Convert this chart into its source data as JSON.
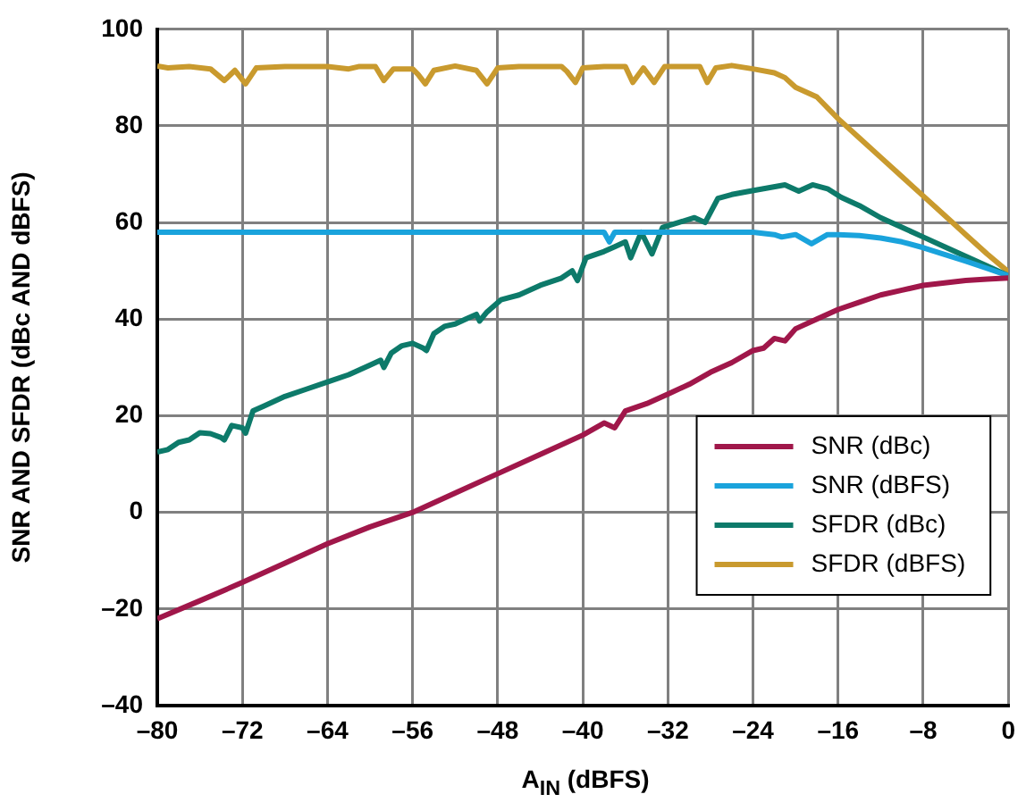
{
  "chart_data": {
    "type": "line",
    "xlabel": "A$_{IN}$ (dBFS)",
    "ylabel": "SNR AND SFDR (dBc AND dBFS)",
    "xlim": [
      -80,
      0
    ],
    "xticks": [
      {
        "value": -80,
        "label": "–80"
      },
      {
        "value": -72,
        "label": "–72"
      },
      {
        "value": -64,
        "label": "–64"
      },
      {
        "value": -56,
        "label": "–56"
      },
      {
        "value": -48,
        "label": "–48"
      },
      {
        "value": -40,
        "label": "–40"
      },
      {
        "value": -32,
        "label": "–32"
      },
      {
        "value": -24,
        "label": "–24"
      },
      {
        "value": -16,
        "label": "–16"
      },
      {
        "value": -8,
        "label": "–8"
      },
      0
    ],
    "ylim": [
      -40,
      100
    ],
    "yticks": [
      {
        "value": -40,
        "label": "–40"
      },
      {
        "value": -20,
        "label": "–20"
      },
      0,
      20,
      40,
      60,
      80,
      100
    ],
    "grid": true,
    "legend": "bottom right",
    "marker": "none",
    "line_style": "solid",
    "series": [
      {
        "name": "SNR (dBc)",
        "color": "#a0174a",
        "x": [
          -80,
          -76,
          -72,
          -68,
          -64,
          -60,
          -56,
          -52,
          -48,
          -44,
          -40,
          -38,
          -37,
          -36,
          -34,
          -32,
          -30,
          -28,
          -26,
          -24,
          -23,
          -22,
          -21,
          -20,
          -18,
          -16,
          -14,
          -12,
          -10,
          -8,
          -6,
          -4,
          -2,
          0
        ],
        "values": [
          -22,
          -18.3,
          -14.5,
          -10.5,
          -6.5,
          -3,
          0,
          4,
          8,
          12,
          16,
          18.5,
          17.5,
          21,
          22.5,
          24.5,
          26.5,
          29,
          31,
          33.5,
          34,
          36,
          35.5,
          38,
          40,
          42,
          43.5,
          45,
          46,
          47,
          47.5,
          48,
          48.3,
          48.5
        ]
      },
      {
        "name": "SNR (dBFS)",
        "color": "#1aa3dc",
        "x": [
          -80,
          -40,
          -38,
          -37.5,
          -37,
          -36,
          -24,
          -22,
          -21.3,
          -20,
          -18.5,
          -17,
          -16,
          -14,
          -12,
          -10,
          -8,
          -6,
          -4,
          -2,
          0
        ],
        "values": [
          58,
          58,
          58,
          56,
          58,
          58,
          58,
          57.5,
          57,
          57.5,
          55.6,
          57.5,
          57.5,
          57.3,
          56.8,
          56,
          54.8,
          53.4,
          52,
          50.5,
          49
        ]
      },
      {
        "name": "SFDR (dBc)",
        "color": "#0d7a6a",
        "x": [
          -80,
          -79,
          -78,
          -77,
          -76,
          -75,
          -74,
          -73.7,
          -73,
          -72,
          -71.7,
          -71,
          -70,
          -68,
          -66,
          -64,
          -62,
          -60,
          -59,
          -58.7,
          -58,
          -57,
          -56,
          -55,
          -54.7,
          -54,
          -53,
          -52,
          -51,
          -50,
          -49.7,
          -49,
          -47.7,
          -46,
          -44,
          -42,
          -41,
          -40.5,
          -39.7,
          -38,
          -37,
          -36,
          -35.5,
          -34.5,
          -33.5,
          -32.5,
          -31,
          -29.5,
          -28.5,
          -27.3,
          -26,
          -24.3,
          -23,
          -21,
          -19.7,
          -18.4,
          -17,
          -15.7,
          -14,
          -12,
          -10,
          -8,
          -6,
          -4,
          -2,
          0
        ],
        "values": [
          12.5,
          13,
          14.5,
          15,
          16.5,
          16.3,
          15.5,
          15,
          18,
          17.5,
          16.4,
          21,
          22,
          24,
          25.5,
          27,
          28.5,
          30.5,
          31.5,
          30,
          33,
          34.5,
          35,
          34,
          33.5,
          37,
          38.5,
          39,
          40,
          41,
          39.6,
          41.5,
          44,
          45,
          47,
          48.5,
          50,
          48,
          52.7,
          54,
          55,
          56,
          52.7,
          58,
          53.5,
          59,
          60,
          61,
          60,
          65,
          65.8,
          66.5,
          67,
          67.8,
          66.5,
          67.8,
          67,
          65.2,
          63.5,
          61,
          59,
          57,
          55,
          53,
          51,
          49
        ]
      },
      {
        "name": "SFDR (dBFS)",
        "color": "#c99a2e",
        "x": [
          -80,
          -79,
          -77,
          -75,
          -73.7,
          -72.7,
          -71.7,
          -70.7,
          -68,
          -66,
          -64,
          -62,
          -61,
          -59.5,
          -58.7,
          -57.8,
          -56,
          -55.5,
          -54.8,
          -54,
          -52,
          -50,
          -49,
          -48,
          -46,
          -44,
          -42,
          -41.5,
          -40.7,
          -40,
          -38,
          -36,
          -35.3,
          -34.3,
          -33.3,
          -32.3,
          -30,
          -29,
          -28.3,
          -27.5,
          -26,
          -24,
          -22,
          -21,
          -20,
          -18,
          -16,
          -14,
          -12,
          -10,
          -8,
          -6,
          -4,
          -2,
          0
        ],
        "values": [
          92.4,
          92,
          92.3,
          91.8,
          89.4,
          91.5,
          88.7,
          92,
          92.3,
          92.3,
          92.3,
          91.8,
          92.3,
          92.3,
          89.4,
          91.8,
          91.8,
          90.7,
          88.7,
          91.5,
          92.4,
          91.5,
          88.7,
          92,
          92.3,
          92.3,
          92.3,
          91.3,
          89,
          92,
          92.3,
          92.3,
          89,
          92,
          89,
          92.3,
          92.3,
          92.3,
          89,
          92,
          92.5,
          91.8,
          91,
          90,
          88,
          86,
          81.5,
          77.5,
          73.5,
          69.5,
          65.5,
          61.5,
          57.5,
          53.5,
          49.8
        ]
      }
    ]
  }
}
